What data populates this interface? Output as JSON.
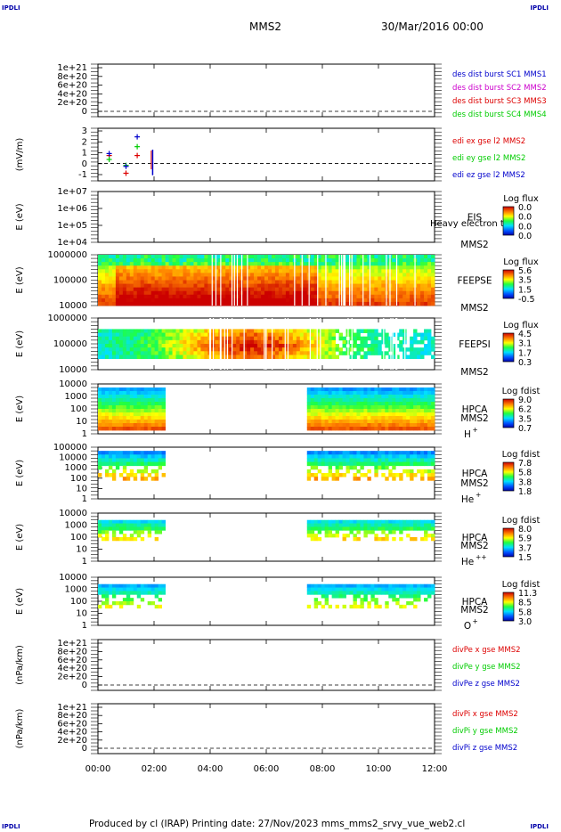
{
  "corners": {
    "tl": "IPDLI",
    "tr": "IPDLI",
    "bl": "IPDLI",
    "br": "IPDLI"
  },
  "header": {
    "mission": "MMS2",
    "date": "30/Mar/2016 00:00"
  },
  "footer": {
    "text": "Produced by cl (IRAP)   Printing date: 27/Nov/2023   mms_mms2_srvy_vue_web2.cl"
  },
  "colors": {
    "red": "#dd0000",
    "green": "#00cc00",
    "blue": "#0000cc",
    "magenta": "#cc00cc",
    "black": "#000000"
  },
  "chart_data": {
    "type": "multi-panel",
    "x_ticks": [
      "00:00",
      "02:00",
      "04:00",
      "06:00",
      "08:00",
      "10:00",
      "12:00"
    ],
    "x_range_hours": [
      0,
      12
    ],
    "panels": [
      {
        "id": "p1",
        "type": "line",
        "ylabel": "",
        "yticks": [
          "1e+21",
          "8e+20",
          "6e+20",
          "4e+20",
          "2e+20",
          "0"
        ],
        "legend": [
          {
            "text": "des dist burst SC1 MMS1",
            "color": "#0000cc"
          },
          {
            "text": "des dist burst SC2 MMS2",
            "color": "#cc00cc"
          },
          {
            "text": "des dist burst SC3 MMS3",
            "color": "#dd0000"
          },
          {
            "text": "des dist burst SC4 MMS4",
            "color": "#00cc00"
          }
        ]
      },
      {
        "id": "p2",
        "type": "scatter",
        "ylabel": "(mV/m)",
        "yticks": [
          "3",
          "2",
          "1",
          "0",
          "-1"
        ],
        "ylim": [
          -1.5,
          3.3
        ],
        "series": [
          {
            "name": "edi ex gse l2 MMS2",
            "color": "#dd0000",
            "x": [
              0.4,
              1.0,
              1.4
            ],
            "y": [
              0.8,
              -1.0,
              0.8
            ]
          },
          {
            "name": "edi ey gse l2 MMS2",
            "color": "#00cc00",
            "x": [
              0.4,
              1.0,
              1.4
            ],
            "y": [
              0.4,
              -0.2,
              1.7
            ]
          },
          {
            "name": "edi ez gse l2 MMS2",
            "color": "#0000cc",
            "x": [
              0.4,
              1.0,
              1.4
            ],
            "y": [
              1.0,
              -0.3,
              2.7
            ]
          }
        ]
      },
      {
        "id": "p3",
        "type": "heatmap",
        "ylabel": "E (eV)",
        "yticks": [
          "1e+07",
          "1e+06",
          "1e+05",
          "1e+04"
        ],
        "side": [
          "EIS",
          "MMS2"
        ],
        "overlay": "Heavy electron tof",
        "cbar_title": "Log flux",
        "cbar_ticks": [
          "0.0",
          "0.0",
          "0.0",
          "0.0"
        ]
      },
      {
        "id": "p4",
        "type": "heatmap",
        "ylabel": "E (eV)",
        "yticks": [
          "1000000",
          "100000",
          "10000"
        ],
        "side": [
          "FEEPSE",
          "MMS2"
        ],
        "cbar_title": "Log flux",
        "cbar_ticks": [
          "5.6",
          "3.5",
          "1.5",
          "-0.5"
        ]
      },
      {
        "id": "p5",
        "type": "heatmap",
        "ylabel": "E (eV)",
        "yticks": [
          "1000000",
          "100000",
          "10000"
        ],
        "side": [
          "FEEPSI",
          "MMS2"
        ],
        "cbar_title": "Log flux",
        "cbar_ticks": [
          "4.5",
          "3.1",
          "1.7",
          "0.3"
        ]
      },
      {
        "id": "p6",
        "type": "heatmap",
        "ylabel": "E (eV)",
        "yticks": [
          "10000",
          "1000",
          "100",
          "10",
          "1"
        ],
        "side": [
          "HPCA",
          "MMS2"
        ],
        "species": "H",
        "species_sup": "+",
        "cbar_title": "Log fdist",
        "cbar_ticks": [
          "9.0",
          "6.2",
          "3.5",
          "0.7"
        ]
      },
      {
        "id": "p7",
        "type": "heatmap",
        "ylabel": "E (eV)",
        "yticks": [
          "100000",
          "10000",
          "1000",
          "100",
          "10",
          "1"
        ],
        "side": [
          "HPCA",
          "MMS2"
        ],
        "species": "He",
        "species_sup": "+",
        "cbar_title": "Log fdist",
        "cbar_ticks": [
          "7.8",
          "5.8",
          "3.8",
          "1.8"
        ]
      },
      {
        "id": "p8",
        "type": "heatmap",
        "ylabel": "E (eV)",
        "yticks": [
          "10000",
          "1000",
          "100",
          "10",
          "1"
        ],
        "side": [
          "HPCA",
          "MMS2"
        ],
        "species": "He",
        "species_sup": "++",
        "cbar_title": "Log fdist",
        "cbar_ticks": [
          "8.0",
          "5.9",
          "3.7",
          "1.5"
        ]
      },
      {
        "id": "p9",
        "type": "heatmap",
        "ylabel": "E (eV)",
        "yticks": [
          "10000",
          "1000",
          "100",
          "10",
          "1"
        ],
        "side": [
          "HPCA",
          "MMS2"
        ],
        "species": "O",
        "species_sup": "+",
        "cbar_title": "Log fdist",
        "cbar_ticks": [
          "11.3",
          "8.5",
          "5.8",
          "3.0"
        ]
      },
      {
        "id": "p10",
        "type": "line",
        "ylabel": "(nPa/km)",
        "yticks": [
          "1e+21",
          "8e+20",
          "6e+20",
          "4e+20",
          "2e+20",
          "0"
        ],
        "legend": [
          {
            "text": "divPe x gse MMS2",
            "color": "#dd0000"
          },
          {
            "text": "divPe y gse MMS2",
            "color": "#00cc00"
          },
          {
            "text": "divPe z gse MMS2",
            "color": "#0000cc"
          }
        ]
      },
      {
        "id": "p11",
        "type": "line",
        "ylabel": "(nPa/km)",
        "yticks": [
          "1e+21",
          "8e+20",
          "6e+20",
          "4e+20",
          "2e+20",
          "0"
        ],
        "legend": [
          {
            "text": "divPi x gse MMS2",
            "color": "#dd0000"
          },
          {
            "text": "divPi y gse MMS2",
            "color": "#00cc00"
          },
          {
            "text": "divPi z gse MMS2",
            "color": "#0000cc"
          }
        ]
      }
    ]
  }
}
